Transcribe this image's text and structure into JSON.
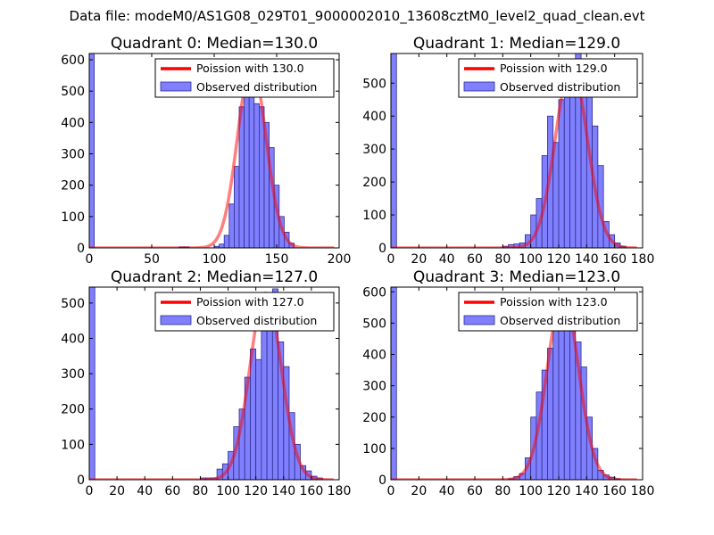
{
  "figure": {
    "suptitle": "Data file: modeM0/AS1G08_029T01_9000002010_13608cztM0_level2_quad_clean.evt"
  },
  "colors": {
    "bar_fill": "#8080ff",
    "bar_edge": "#2c2c8c",
    "line": "#ff0000",
    "axes": "#000000",
    "legend_edge": "#000000"
  },
  "chart_data": [
    {
      "type": "bar",
      "title": "Quadrant 0: Median=130.0",
      "median": 130.0,
      "xlim": [
        0,
        200
      ],
      "ylim": [
        0,
        620
      ],
      "xticks": [
        0,
        50,
        100,
        150,
        200
      ],
      "yticks": [
        0,
        100,
        200,
        300,
        400,
        500,
        600
      ],
      "bin_width": 4,
      "hist_left": [
        0,
        72,
        76,
        100,
        104,
        108,
        112,
        116,
        120,
        124,
        128,
        132,
        136,
        140,
        144,
        148,
        152,
        156,
        160
      ],
      "hist_counts": [
        620,
        3,
        3,
        5,
        12,
        40,
        140,
        260,
        450,
        490,
        580,
        460,
        450,
        400,
        320,
        200,
        100,
        50,
        15
      ],
      "curve_peak": 583,
      "legend": [
        "Poission with 130.0",
        "Observed distribution"
      ]
    },
    {
      "type": "bar",
      "title": "Quadrant 1: Median=129.0",
      "median": 129.0,
      "xlim": [
        0,
        180
      ],
      "ylim": [
        0,
        590
      ],
      "xticks": [
        0,
        20,
        40,
        60,
        80,
        100,
        120,
        140,
        160,
        180
      ],
      "yticks": [
        0,
        100,
        200,
        300,
        400,
        500
      ],
      "bin_width": 4,
      "hist_left": [
        0,
        80,
        84,
        88,
        92,
        96,
        100,
        104,
        108,
        112,
        116,
        120,
        124,
        128,
        132,
        136,
        140,
        144,
        148,
        152,
        156,
        160,
        164
      ],
      "hist_counts": [
        590,
        5,
        10,
        12,
        15,
        40,
        100,
        150,
        280,
        400,
        320,
        450,
        510,
        530,
        590,
        510,
        550,
        370,
        250,
        80,
        40,
        15,
        5
      ],
      "curve_peak": 553,
      "legend": [
        "Poission with 129.0",
        "Observed distribution"
      ]
    },
    {
      "type": "bar",
      "title": "Quadrant 2: Median=127.0",
      "median": 127.0,
      "xlim": [
        0,
        180
      ],
      "ylim": [
        0,
        545
      ],
      "xticks": [
        0,
        20,
        40,
        60,
        80,
        100,
        120,
        140,
        160,
        180
      ],
      "yticks": [
        0,
        100,
        200,
        300,
        400,
        500
      ],
      "bin_width": 4,
      "hist_left": [
        0,
        80,
        84,
        88,
        92,
        96,
        100,
        104,
        108,
        112,
        116,
        120,
        124,
        128,
        132,
        136,
        140,
        144,
        148,
        152,
        156,
        160,
        164
      ],
      "hist_counts": [
        545,
        5,
        5,
        5,
        30,
        45,
        80,
        150,
        200,
        290,
        370,
        340,
        450,
        520,
        540,
        390,
        320,
        190,
        100,
        40,
        25,
        10,
        5
      ],
      "curve_peak": 528,
      "legend": [
        "Poission with 127.0",
        "Observed distribution"
      ]
    },
    {
      "type": "bar",
      "title": "Quadrant 3: Median=123.0",
      "median": 123.0,
      "xlim": [
        0,
        180
      ],
      "ylim": [
        0,
        615
      ],
      "xticks": [
        0,
        20,
        40,
        60,
        80,
        100,
        120,
        140,
        160,
        180
      ],
      "yticks": [
        0,
        100,
        200,
        300,
        400,
        500,
        600
      ],
      "bin_width": 4,
      "hist_left": [
        0,
        84,
        88,
        92,
        96,
        100,
        104,
        108,
        112,
        116,
        120,
        124,
        128,
        132,
        136,
        140,
        144,
        148,
        152,
        156,
        160
      ],
      "hist_counts": [
        615,
        3,
        10,
        20,
        70,
        200,
        280,
        350,
        420,
        480,
        500,
        580,
        520,
        440,
        360,
        200,
        100,
        30,
        15,
        8,
        3
      ],
      "curve_peak": 592,
      "legend": [
        "Poission with 123.0",
        "Observed distribution"
      ]
    }
  ]
}
